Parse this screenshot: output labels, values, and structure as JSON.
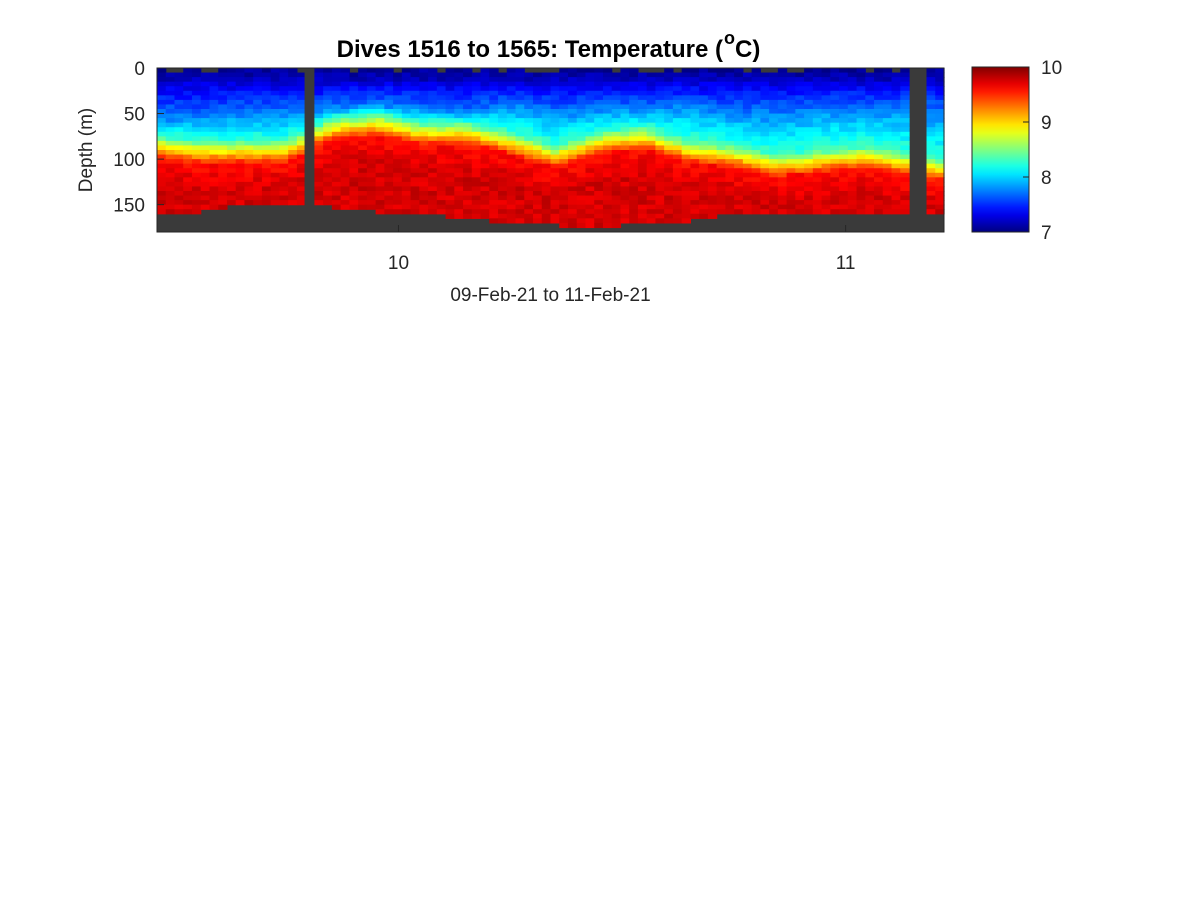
{
  "chart_data": {
    "type": "heatmap",
    "title": "Dives 1516 to 1565: Temperature (",
    "title_superscript": "o",
    "title_suffix": " C)",
    "xlabel": "09-Feb-21 to 11-Feb-21",
    "ylabel": "Depth (m)",
    "x_ticks": [
      {
        "value": 10,
        "label": "10"
      },
      {
        "value": 11,
        "label": "11"
      }
    ],
    "xlim": [
      9.46,
      11.22
    ],
    "y_ticks": [
      {
        "value": 0,
        "label": "0"
      },
      {
        "value": 50,
        "label": "50"
      },
      {
        "value": 100,
        "label": "100"
      },
      {
        "value": 150,
        "label": "150"
      }
    ],
    "ylim": [
      0,
      180
    ],
    "y_reversed": true,
    "colorbar": {
      "colormap": "jet",
      "clim": [
        7,
        10
      ],
      "ticks": [
        {
          "value": 7,
          "label": "7"
        },
        {
          "value": 8,
          "label": "8"
        },
        {
          "value": 9,
          "label": "9"
        },
        {
          "value": 10,
          "label": "10"
        }
      ]
    },
    "nodata_color": "#3a3a3a",
    "profile_x": [
      9.46,
      9.55,
      9.65,
      9.75,
      9.85,
      9.95,
      10.05,
      10.15,
      10.25,
      10.35,
      10.45,
      10.55,
      10.65,
      10.75,
      10.85,
      10.95,
      11.05,
      11.15,
      11.22
    ],
    "top_mixed_depth": [
      55,
      55,
      50,
      50,
      45,
      40,
      45,
      50,
      40,
      50,
      45,
      45,
      40,
      50,
      50,
      45,
      45,
      45,
      50
    ],
    "thermocline_depth": [
      90,
      95,
      95,
      95,
      70,
      65,
      75,
      75,
      85,
      100,
      85,
      80,
      95,
      100,
      110,
      105,
      100,
      110,
      115
    ],
    "bottom_depth": [
      162,
      158,
      150,
      150,
      152,
      158,
      160,
      165,
      170,
      172,
      175,
      170,
      168,
      160,
      160,
      158,
      158,
      158,
      160
    ],
    "gaps": [
      {
        "x0": 9.79,
        "x1": 9.81
      },
      {
        "x0": 11.15,
        "x1": 11.18
      }
    ]
  }
}
